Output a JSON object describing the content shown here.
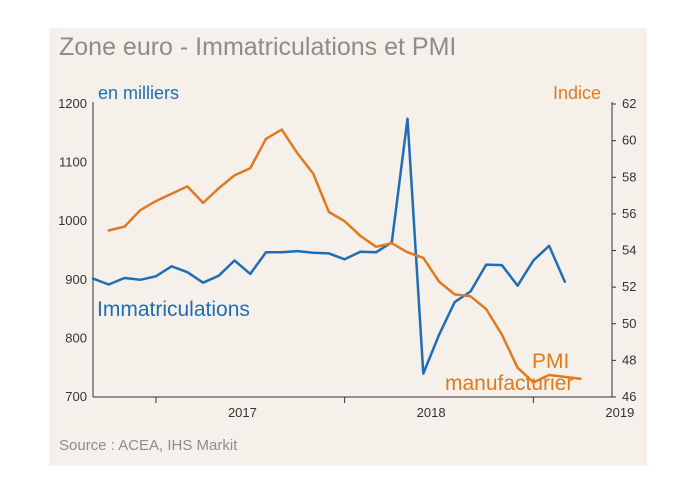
{
  "chart_data": {
    "type": "line",
    "title": "Zone euro - Immatriculations et PMI",
    "source": "Source : ACEA, IHS Markit",
    "left_axis_unit": "en milliers",
    "right_axis_unit": "Indice",
    "left_ylim": [
      700,
      1200
    ],
    "left_yticks": [
      700,
      800,
      900,
      1000,
      1100,
      1200
    ],
    "right_ylim": [
      46,
      62
    ],
    "right_yticks": [
      46,
      48,
      50,
      52,
      54,
      56,
      58,
      60,
      62
    ],
    "x_start": "2016-09",
    "x_end": "2019-06",
    "x_tick_labels": [
      "2017",
      "2018",
      "2019"
    ],
    "grid": false,
    "colors": {
      "immatriculations": "#1f6eb5",
      "pmi": "#e07a1f"
    },
    "series": [
      {
        "name": "Immatriculations",
        "axis": "left",
        "x": [
          "2016-09",
          "2016-10",
          "2016-11",
          "2016-12",
          "2017-01",
          "2017-02",
          "2017-03",
          "2017-04",
          "2017-05",
          "2017-06",
          "2017-07",
          "2017-08",
          "2017-09",
          "2017-10",
          "2017-11",
          "2017-12",
          "2018-01",
          "2018-02",
          "2018-03",
          "2018-04",
          "2018-05",
          "2018-06",
          "2018-07",
          "2018-08",
          "2018-09",
          "2018-10",
          "2018-11",
          "2018-12",
          "2019-01",
          "2019-02",
          "2019-03",
          "2019-04",
          "2019-05",
          "2019-06"
        ],
        "values": [
          902,
          892,
          903,
          900,
          906,
          923,
          913,
          895,
          907,
          933,
          910,
          947,
          947,
          949,
          946,
          945,
          935,
          948,
          947,
          964,
          1175,
          740,
          806,
          862,
          880,
          926,
          925,
          890,
          933,
          958,
          897,
          null,
          null,
          null
        ]
      },
      {
        "name": "PMI manufacturier",
        "axis": "right",
        "x": [
          "2016-09",
          "2016-10",
          "2016-11",
          "2016-12",
          "2017-01",
          "2017-02",
          "2017-03",
          "2017-04",
          "2017-05",
          "2017-06",
          "2017-07",
          "2017-08",
          "2017-09",
          "2017-10",
          "2017-11",
          "2017-12",
          "2018-01",
          "2018-02",
          "2018-03",
          "2018-04",
          "2018-05",
          "2018-06",
          "2018-07",
          "2018-08",
          "2018-09",
          "2018-10",
          "2018-11",
          "2018-12",
          "2019-01",
          "2019-02",
          "2019-03",
          "2019-04",
          "2019-05",
          "2019-06"
        ],
        "values": [
          null,
          55.1,
          55.3,
          56.2,
          56.7,
          57.1,
          57.5,
          56.6,
          57.4,
          58.1,
          58.5,
          60.1,
          60.6,
          59.3,
          58.2,
          56.1,
          55.6,
          54.8,
          54.2,
          54.4,
          53.9,
          53.6,
          52.3,
          51.6,
          51.5,
          50.8,
          49.4,
          47.6,
          46.8,
          47.2,
          47.1,
          47.0,
          null,
          null
        ]
      }
    ],
    "series_labels": [
      "Immatriculations",
      "PMI",
      "manufacturier"
    ]
  }
}
